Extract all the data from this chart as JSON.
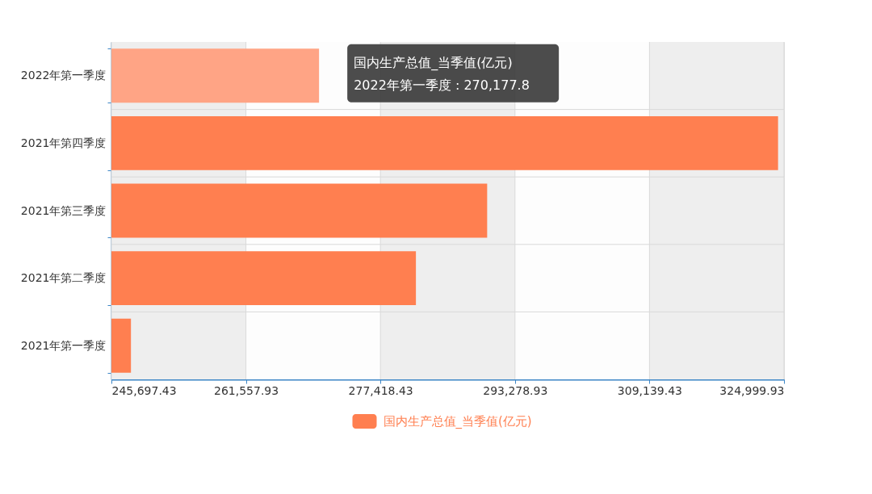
{
  "chart_data": {
    "type": "bar",
    "orientation": "horizontal",
    "categories": [
      "2022年第一季度",
      "2021年第四季度",
      "2021年第三季度",
      "2021年第二季度",
      "2021年第一季度"
    ],
    "series": [
      {
        "name": "国内生产总值_当季值(亿元)",
        "color": "#ff7f50",
        "colors": [
          "#ffa485",
          "#ff7f50",
          "#ff7f50",
          "#ff7f50",
          "#ff7f50"
        ],
        "values": [
          270177.8,
          324300,
          290000,
          281600,
          248000
        ]
      }
    ],
    "xlim": [
      245697.43,
      324999.93
    ],
    "xticks": [
      {
        "value": 245697.43,
        "label": "245,697.43"
      },
      {
        "value": 261557.93,
        "label": "261,557.93"
      },
      {
        "value": 277418.43,
        "label": "277,418.43"
      },
      {
        "value": 293278.93,
        "label": "293,278.93"
      },
      {
        "value": 309139.43,
        "label": "309,139.43"
      },
      {
        "value": 324999.93,
        "label": "324,999.93"
      }
    ],
    "grid": true,
    "legend": "bottom",
    "annotations": [
      {
        "text": "国内生产总值_当季值(亿元)",
        "x": 270177.8,
        "y": "2022年第一季度"
      },
      {
        "text": "2022年第一季度 : 270,177.8",
        "x": 270177.8,
        "y": "2022年第一季度"
      }
    ]
  }
}
